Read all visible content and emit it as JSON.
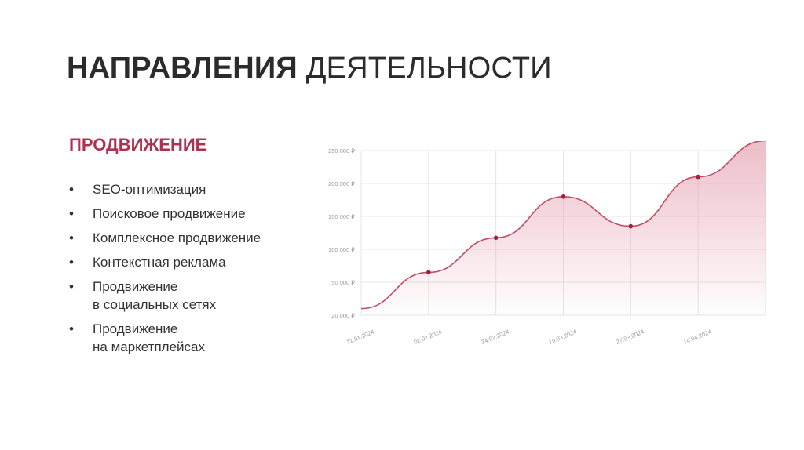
{
  "slide": {
    "title_bold": "НАПРАВЛЕНИЯ",
    "title_rest": "ДЕЯТЕЛЬНОСТИ",
    "section_title": "ПРОДВИЖЕНИЕ",
    "bullets": [
      "SEO-оптимизация",
      "Поисковое продвижение",
      "Комплексное продвижение",
      "Контекстная реклама",
      "Продвижение\nв социальных сетях",
      "Продвижение\nна маркетплейсах"
    ]
  },
  "colors": {
    "accent": "#b0304f",
    "line": "#c44a65",
    "fill": "#e7a7b5"
  },
  "chart_data": {
    "type": "area",
    "title": "",
    "xlabel": "",
    "ylabel": "",
    "x_ticks": [
      "11.01.2024",
      "02.02.2024",
      "24.02.2024",
      "19.03.2024",
      "27.03.2024",
      "14.04.2024"
    ],
    "y_ticks": [
      "20 000 ₽",
      "50 000 ₽",
      "100 000 ₽",
      "150 000 ₽",
      "200 000 ₽",
      "250 000 ₽"
    ],
    "grid": true,
    "series": [
      {
        "x": [
          0,
          1,
          2,
          3,
          4,
          5,
          6
        ],
        "y": [
          0.2,
          1.3,
          2.35,
          3.6,
          2.7,
          4.2,
          5.3
        ],
        "markers": [
          false,
          true,
          true,
          true,
          true,
          true,
          false
        ]
      }
    ]
  }
}
